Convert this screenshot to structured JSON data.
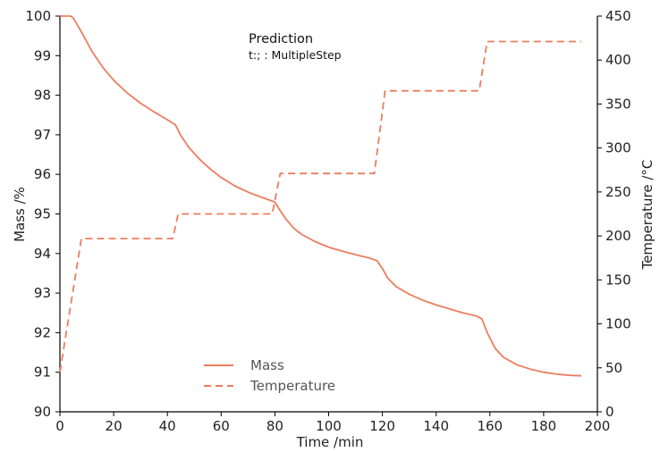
{
  "chart_data": {
    "type": "line",
    "title": "Prediction",
    "subtitle": "t:; : MultipleStep",
    "xlabel": "Time /min",
    "ylabel": "Mass /%",
    "y2label": "Temperature /°C",
    "xlim": [
      0,
      200
    ],
    "ylim": [
      90,
      100
    ],
    "y2lim": [
      0,
      450
    ],
    "xticks": [
      0,
      20,
      40,
      60,
      80,
      100,
      120,
      140,
      160,
      180,
      200
    ],
    "yticks": [
      90,
      91,
      92,
      93,
      94,
      95,
      96,
      97,
      98,
      99,
      100
    ],
    "y2ticks": [
      0,
      50,
      100,
      150,
      200,
      250,
      300,
      350,
      400,
      450
    ],
    "grid": false,
    "legend_position": "bottom-center",
    "colors": {
      "series": "#ec7c5e",
      "axis": "#000000"
    },
    "series": [
      {
        "name": "Mass",
        "axis": "left",
        "style": "solid",
        "x": [
          0,
          2,
          4,
          5,
          8,
          12,
          16,
          20,
          25,
          30,
          35,
          40,
          43,
          45,
          48,
          52,
          56,
          60,
          65,
          70,
          75,
          80,
          82,
          84,
          87,
          90,
          95,
          100,
          105,
          110,
          115,
          118,
          120,
          122,
          125,
          130,
          135,
          140,
          145,
          150,
          155,
          157,
          159,
          162,
          165,
          170,
          175,
          180,
          185,
          190,
          194
        ],
        "y": [
          100,
          100,
          100,
          99.95,
          99.6,
          99.1,
          98.7,
          98.38,
          98.06,
          97.8,
          97.58,
          97.38,
          97.25,
          96.98,
          96.68,
          96.38,
          96.13,
          95.92,
          95.71,
          95.55,
          95.42,
          95.3,
          95.08,
          94.88,
          94.64,
          94.48,
          94.3,
          94.16,
          94.06,
          93.97,
          93.89,
          93.82,
          93.62,
          93.38,
          93.17,
          92.97,
          92.82,
          92.7,
          92.6,
          92.5,
          92.42,
          92.35,
          92.0,
          91.6,
          91.38,
          91.19,
          91.08,
          91.0,
          90.95,
          90.92,
          90.91
        ]
      },
      {
        "name": "Temperature",
        "axis": "right",
        "style": "dashed",
        "x": [
          0,
          8,
          42,
          44,
          79,
          82,
          117,
          121,
          156,
          159,
          194
        ],
        "y": [
          45,
          197,
          197,
          225,
          225,
          271,
          271,
          365,
          365,
          421,
          421
        ]
      }
    ]
  }
}
